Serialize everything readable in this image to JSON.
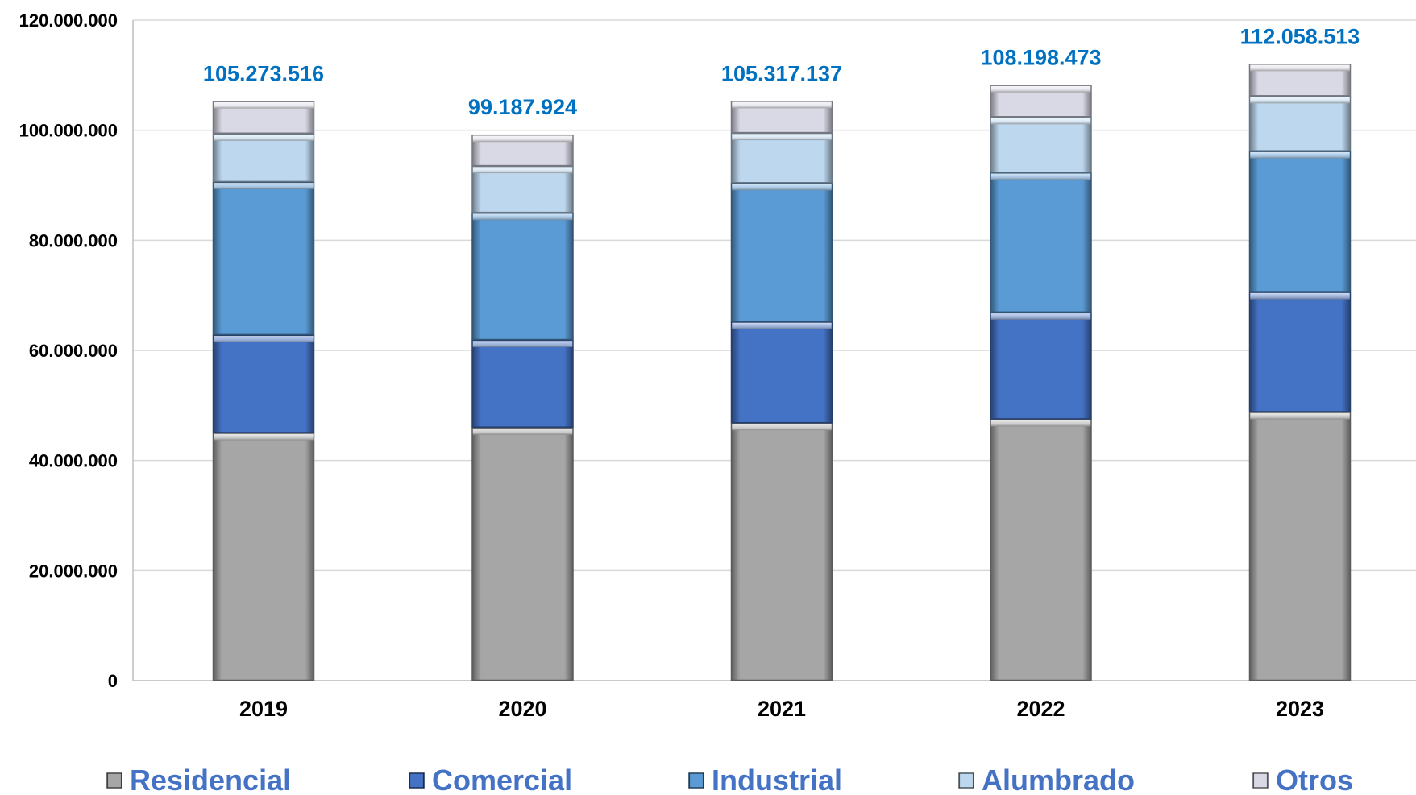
{
  "chart_data": {
    "type": "bar",
    "stacked": true,
    "categories": [
      "2019",
      "2020",
      "2021",
      "2022",
      "2023"
    ],
    "series": [
      {
        "name": "Residencial",
        "color": "#A6A6A6",
        "values": [
          45000000,
          46000000,
          46800000,
          47500000,
          48800000
        ]
      },
      {
        "name": "Comercial",
        "color": "#4472C4",
        "values": [
          17800000,
          15900000,
          18400000,
          19400000,
          21800000
        ]
      },
      {
        "name": "Industrial",
        "color": "#5B9BD5",
        "values": [
          27800000,
          23100000,
          25200000,
          25400000,
          25600000
        ]
      },
      {
        "name": "Alumbrado",
        "color": "#BDD7EE",
        "values": [
          8800000,
          8500000,
          9100000,
          10100000,
          10000000
        ]
      },
      {
        "name": "Otros",
        "color": "#D9D9E6",
        "values": [
          5873516,
          5687924,
          5817137,
          5798473,
          5858513
        ]
      }
    ],
    "totals": [
      "105.273.516",
      "99.187.924",
      "105.317.137",
      "108.198.473",
      "112.058.513"
    ],
    "total_values": [
      105273516,
      99187924,
      105317137,
      108198473,
      112058513
    ],
    "y_ticks": [
      "0",
      "20.000.000",
      "40.000.000",
      "60.000.000",
      "80.000.000",
      "100.000.000",
      "120.000.000"
    ],
    "ylim": [
      0,
      120000000
    ],
    "grid": true,
    "legend_position": "bottom",
    "title": "",
    "xlabel": "",
    "ylabel": ""
  }
}
